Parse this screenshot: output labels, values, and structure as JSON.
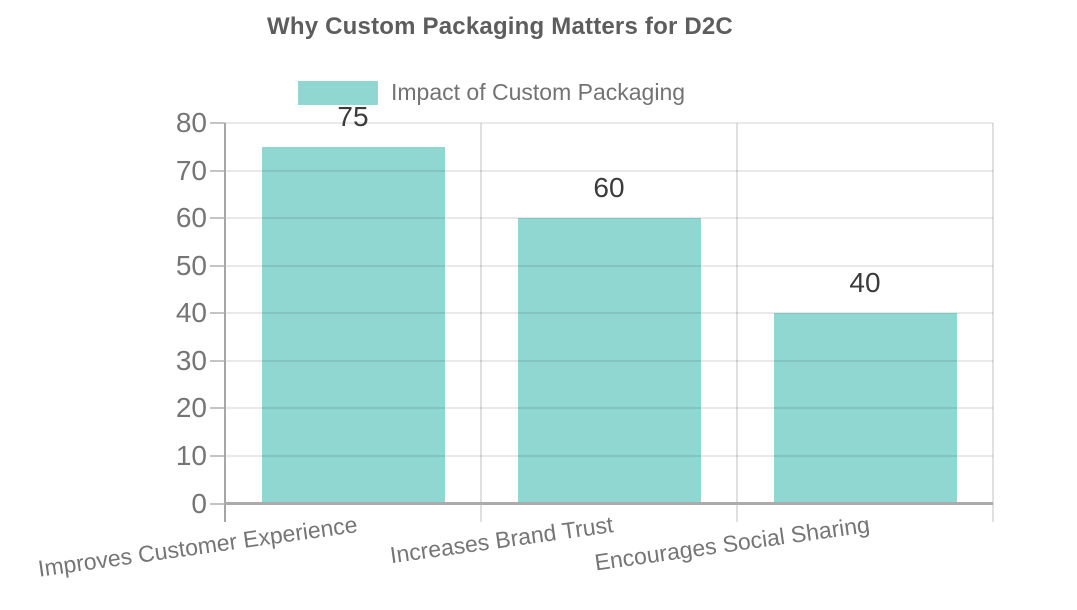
{
  "chart_data": {
    "type": "bar",
    "title": "Why Custom Packaging Matters for D2C",
    "categories": [
      "Improves Customer Experience",
      "Increases Brand Trust",
      "Encourages Social Sharing"
    ],
    "series": [
      {
        "name": "Impact of Custom Packaging",
        "values": [
          75,
          60,
          40
        ]
      }
    ],
    "value_labels": [
      "75",
      "60",
      "40"
    ],
    "ylim": [
      0,
      80
    ],
    "yticks": [
      0,
      10,
      20,
      30,
      40,
      50,
      60,
      70,
      80
    ],
    "grid": true,
    "legend_position": "top-center",
    "colors": {
      "bar": "#90d7d1",
      "title_text": "#5d5d5d",
      "tick_text": "#757575",
      "value_text": "#3b3b3b",
      "axis_line": "#ababab",
      "gridline": "#e0e0e0"
    }
  }
}
